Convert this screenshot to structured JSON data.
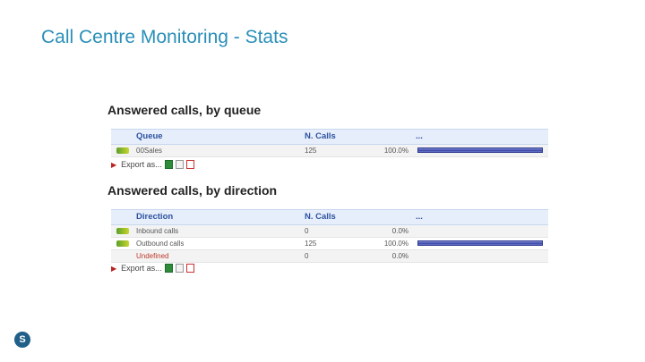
{
  "slide": {
    "title": "Call Centre Monitoring - Stats",
    "logo_glyph": "S"
  },
  "accent": {
    "title_color": "#2a8fb8",
    "header_color": "#2d52a0",
    "bar_color": "#3a47a8",
    "red_label": "#c0392b"
  },
  "queue_section": {
    "title": "Answered calls, by queue",
    "headers": {
      "name": "Queue",
      "calls": "N. Calls",
      "bar": "..."
    },
    "rows": [
      {
        "name": "00Sales",
        "calls": "125",
        "pct": "100.0%",
        "pct_value": 100.0
      }
    ],
    "export_label": "Export as..."
  },
  "direction_section": {
    "title": "Answered calls, by direction",
    "headers": {
      "name": "Direction",
      "calls": "N. Calls",
      "bar": "..."
    },
    "rows": [
      {
        "name": "Inbound calls",
        "calls": "0",
        "pct": "0.0%",
        "pct_value": 0.0
      },
      {
        "name": "Outbound calls",
        "calls": "125",
        "pct": "100.0%",
        "pct_value": 100.0
      },
      {
        "name": "Undefined",
        "calls": "0",
        "pct": "0.0%",
        "pct_value": 0.0
      }
    ],
    "export_label": "Export as..."
  },
  "icons": {
    "row_icon": "arrow-right-icon",
    "export_arrow": "triangle-right-icon",
    "xls": "excel-icon",
    "csv": "csv-icon",
    "pdf": "pdf-icon"
  }
}
